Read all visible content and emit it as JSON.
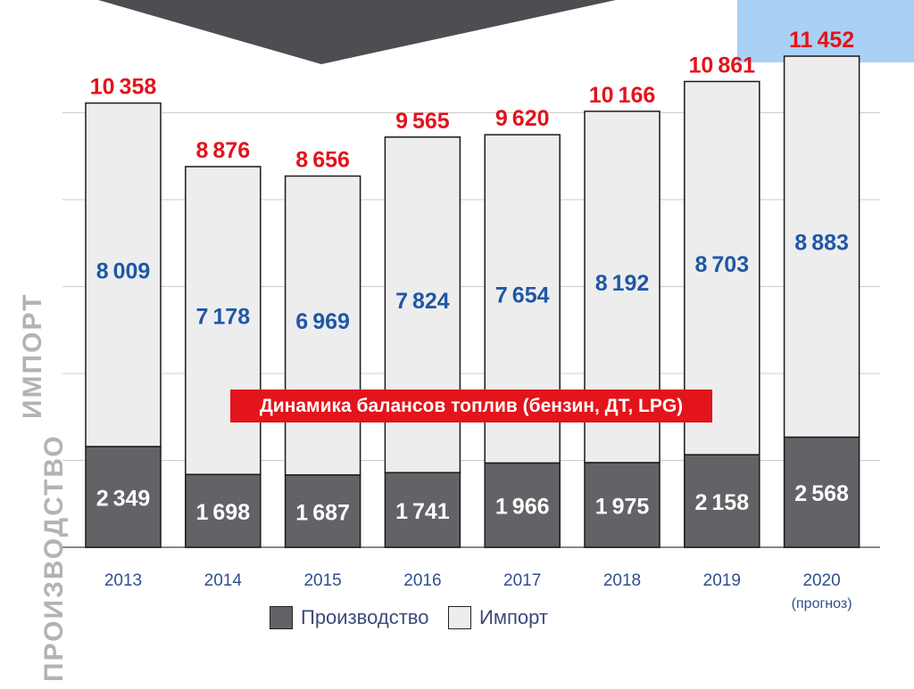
{
  "chart_data": {
    "type": "bar",
    "stacked": true,
    "title": "Динамика балансов топлив (бензин, ДТ, LPG)",
    "categories": [
      "2013",
      "2014",
      "2015",
      "2016",
      "2017",
      "2018",
      "2019",
      "2020"
    ],
    "category_notes": [
      "",
      "",
      "",
      "",
      "",
      "",
      "",
      "(прогноз)"
    ],
    "series": [
      {
        "name": "Производство",
        "values": [
          2349,
          1698,
          1687,
          1741,
          1966,
          1975,
          2158,
          2568
        ],
        "color": "#626366",
        "label_color": "#ffffff"
      },
      {
        "name": "Импорт",
        "values": [
          8009,
          7178,
          6969,
          7824,
          7654,
          8192,
          8703,
          8883
        ],
        "color": "#ededed",
        "label_color": "#1f57a6"
      }
    ],
    "totals": [
      10358,
      8876,
      8656,
      9565,
      9620,
      10166,
      10861,
      11452
    ],
    "total_color": "#e3141b",
    "ylim": [
      0,
      11452
    ],
    "grid": true,
    "axis_labels_vertical": [
      "ПРОИЗВОДСТВО",
      "ИМПОРТ"
    ],
    "legend_position": "bottom"
  },
  "colors": {
    "production": "#626366",
    "import": "#ededed",
    "total_labels": "#e3141b",
    "import_labels": "#1f57a6",
    "banner": "#e3141b",
    "highlight": "#a9d1f5",
    "decor": "#4d4e52"
  }
}
